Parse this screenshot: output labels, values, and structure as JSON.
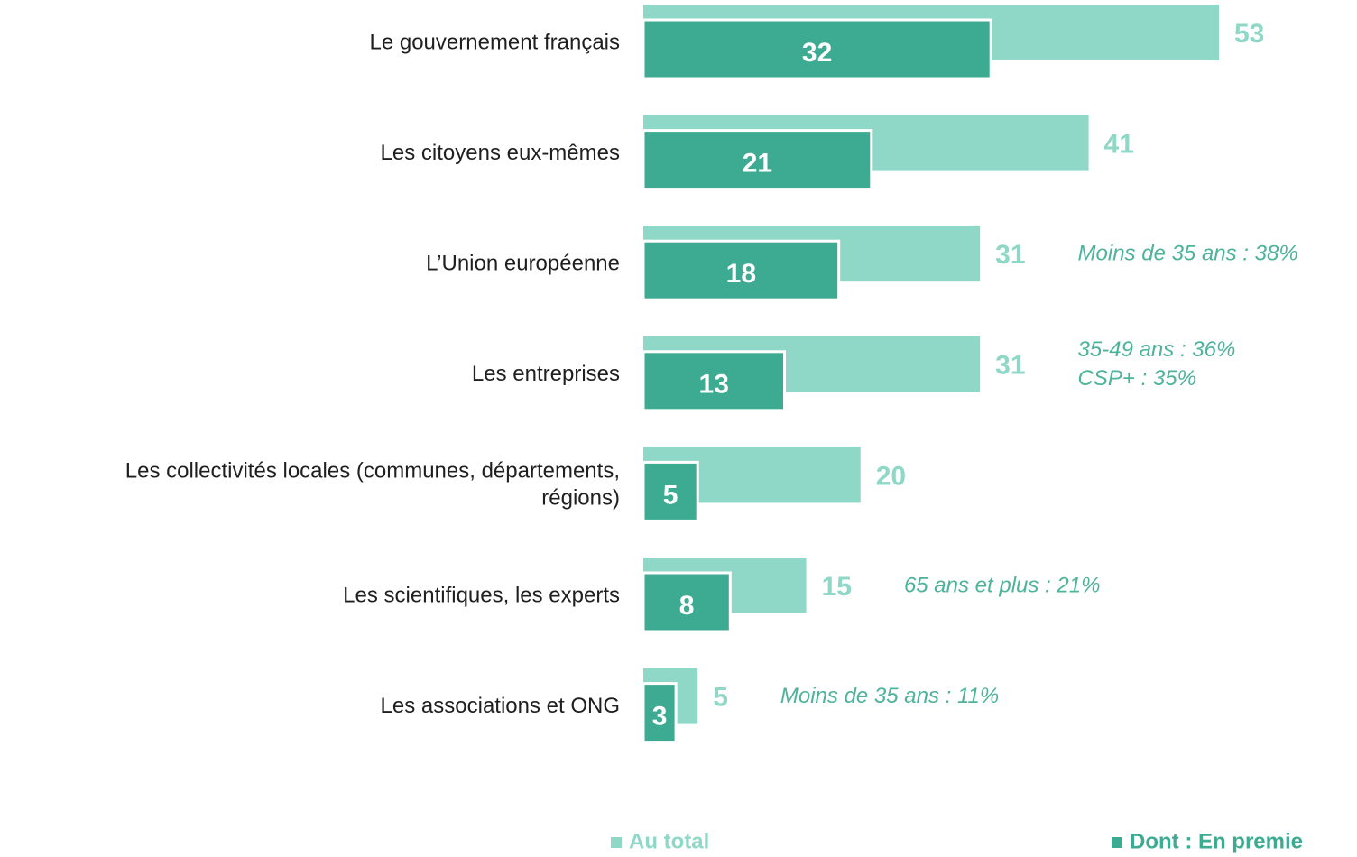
{
  "chart_data": {
    "type": "bar",
    "categories": [
      "Le gouvernement français",
      "Les citoyens eux-mêmes",
      "L’Union européenne",
      "Les entreprises",
      [
        "Les collectivités locales (communes, départements,",
        "régions)"
      ],
      "Les scientifiques, les experts",
      "Les associations et ONG"
    ],
    "series": [
      {
        "name": "Au total",
        "color": "#8fd8c8",
        "values": [
          53,
          41,
          31,
          31,
          20,
          15,
          5
        ]
      },
      {
        "name": "Dont : En premie",
        "color": "#3dab91",
        "values": [
          32,
          21,
          18,
          13,
          5,
          8,
          3
        ]
      }
    ],
    "annotations": [
      null,
      null,
      [
        "Moins de 35 ans : 38%"
      ],
      [
        "35-49 ans : 36%",
        "CSP+ : 35%"
      ],
      null,
      [
        "65 ans et plus : 21%"
      ],
      [
        "Moins de 35 ans : 11%"
      ]
    ],
    "annotation_color": "#4db39b"
  }
}
